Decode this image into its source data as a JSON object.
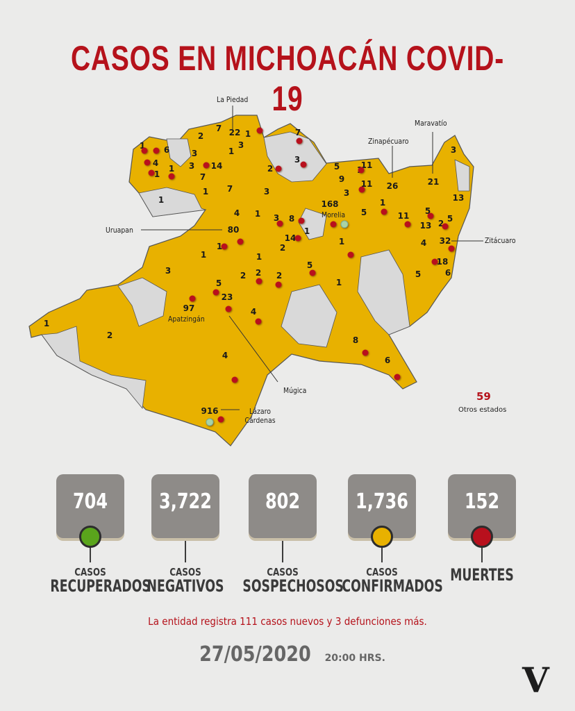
{
  "title": "CASOS EN MICHOACÁN COVID-19",
  "colors": {
    "title_red": "#b5121b",
    "affected": "#e8b100",
    "unaffected": "#d8d8d8",
    "recovered": "#5aa51c",
    "confirmed": "#e8b100",
    "deaths": "#b8101d"
  },
  "map": {
    "municipality_counts": [
      "1",
      "6",
      "4",
      "1",
      "1",
      "1",
      "3",
      "3",
      "14",
      "2",
      "7",
      "22",
      "1",
      "3",
      "1",
      "7",
      "1",
      "7",
      "2",
      "3",
      "7",
      "3",
      "4",
      "1",
      "80",
      "1",
      "1",
      "3",
      "8",
      "14",
      "1",
      "168",
      "5",
      "9",
      "3",
      "1",
      "11",
      "11",
      "5",
      "1",
      "26",
      "21",
      "3",
      "13",
      "5",
      "11",
      "13",
      "2",
      "5",
      "4",
      "32",
      "18",
      "6",
      "5",
      "2",
      "1",
      "3",
      "2",
      "2",
      "2",
      "5",
      "1",
      "1",
      "5",
      "23",
      "97",
      "4",
      "1",
      "2",
      "4",
      "8",
      "6",
      "916"
    ],
    "cities": [
      "La Piedad",
      "Maravatío",
      "Zinapécuaro",
      "Uruapan",
      "Morelia",
      "Zitácuaro",
      "Apatzingán",
      "Múgica",
      "Lázaro Cárdenas"
    ],
    "other_states": {
      "value": "59",
      "label": "Otros estados"
    }
  },
  "stats": [
    {
      "value": "704",
      "top": "CASOS",
      "bottom": "RECUPERADOS",
      "marker": "green"
    },
    {
      "value": "3,722",
      "top": "CASOS",
      "bottom": "NEGATIVOS",
      "marker": ""
    },
    {
      "value": "802",
      "top": "CASOS",
      "bottom": "SOSPECHOSOS",
      "marker": ""
    },
    {
      "value": "1,736",
      "top": "CASOS",
      "bottom": "CONFIRMADOS",
      "marker": "yellow"
    },
    {
      "value": "152",
      "top": "",
      "bottom": "MUERTES",
      "marker": "red"
    }
  ],
  "note": "La entidad registra 111 casos nuevos y 3 defunciones más.",
  "date": "27/05/2020",
  "time": "20:00 HRS.",
  "logo": "V"
}
